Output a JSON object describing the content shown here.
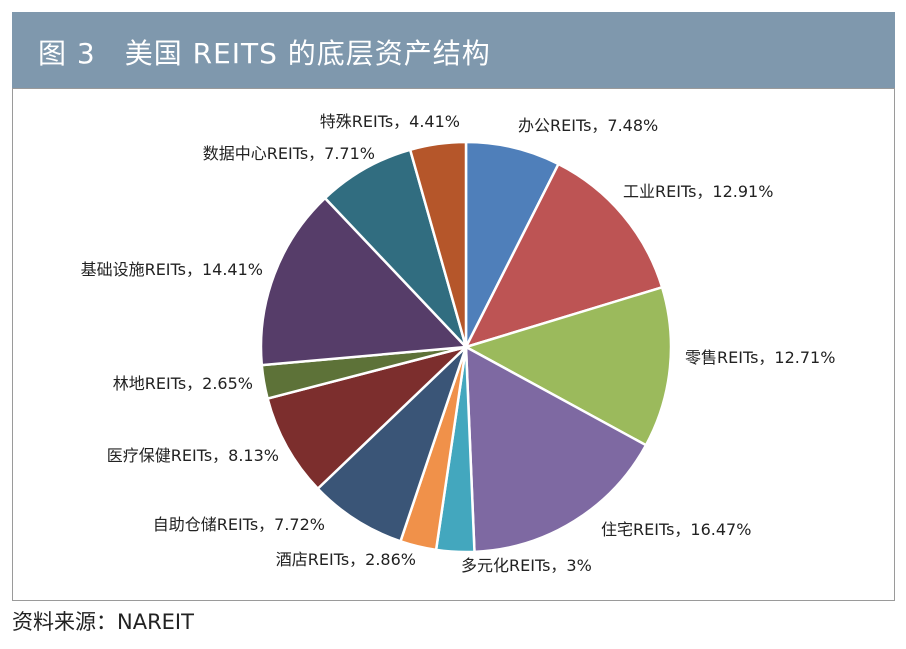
{
  "header": {
    "title": "图 3　美国 REITS 的底层资产结构"
  },
  "footer": {
    "source": "资料来源：NAREIT"
  },
  "chart_data": {
    "type": "pie",
    "title": "图 3　美国 REITS 的底层资产结构",
    "start_angle_deg": 0,
    "direction": "clockwise",
    "legend": "none",
    "slices": [
      {
        "name": "办公REITs",
        "value": 7.48,
        "label": "办公REITs，7.48%",
        "color": "#4f7fba"
      },
      {
        "name": "工业REITs",
        "value": 12.91,
        "label": "工业REITs，12.91%",
        "color": "#bd5454"
      },
      {
        "name": "零售REITs",
        "value": 12.71,
        "label": "零售REITs，12.71%",
        "color": "#9bba5c"
      },
      {
        "name": "住宅REITs",
        "value": 16.47,
        "label": "住宅REITs，16.47%",
        "color": "#7e69a2"
      },
      {
        "name": "多元化REITs",
        "value": 3,
        "label": "多元化REITs，3%",
        "color": "#43a7be"
      },
      {
        "name": "酒店REITs",
        "value": 2.86,
        "label": "酒店REITs，2.86%",
        "color": "#f0914a"
      },
      {
        "name": "自助仓储REITs",
        "value": 7.72,
        "label": "自助仓储REITs，7.72%",
        "color": "#3a5577"
      },
      {
        "name": "医疗保健REITs",
        "value": 8.13,
        "label": "医疗保健REITs，8.13%",
        "color": "#7c2e2d"
      },
      {
        "name": "林地REITs",
        "value": 2.65,
        "label": "林地REITs，2.65%",
        "color": "#5d7238"
      },
      {
        "name": "基础设施REITs",
        "value": 14.41,
        "label": "基础设施REITs，14.41%",
        "color": "#563d69"
      },
      {
        "name": "数据中心REITs",
        "value": 7.71,
        "label": "数据中心REITs，7.71%",
        "color": "#316d80"
      },
      {
        "name": "特殊REITs",
        "value": 4.41,
        "label": "特殊REITs，4.41%",
        "color": "#b5562a"
      }
    ]
  }
}
